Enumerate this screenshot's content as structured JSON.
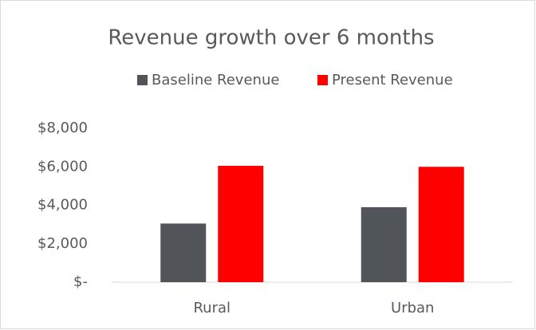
{
  "chart_data": {
    "type": "bar",
    "title": "Revenue growth over 6 months",
    "categories": [
      "Rural",
      "Urban"
    ],
    "series": [
      {
        "name": "Baseline Revenue",
        "color": "#515459",
        "values": [
          3050,
          3900
        ]
      },
      {
        "name": "Present Revenue",
        "color": "#ff0000",
        "values": [
          6050,
          6000
        ]
      }
    ],
    "ylim": [
      0,
      8000
    ],
    "yticks": [
      {
        "value": 0,
        "label": "$-"
      },
      {
        "value": 2000,
        "label": "$2,000"
      },
      {
        "value": 4000,
        "label": "$4,000"
      },
      {
        "value": 6000,
        "label": "$6,000"
      },
      {
        "value": 8000,
        "label": "$8,000"
      }
    ],
    "grid": false,
    "legend": "top"
  }
}
